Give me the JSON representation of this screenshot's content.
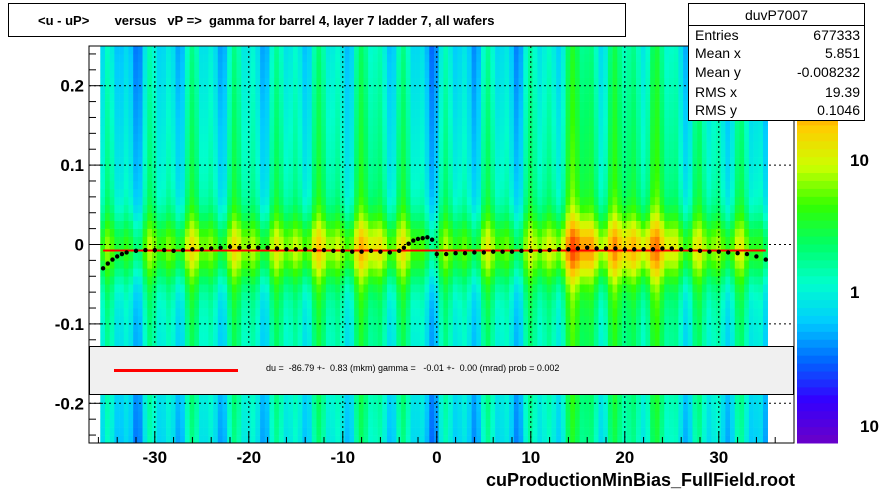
{
  "title": "<u - uP>       versus   vP =>  gamma for barrel 4, layer 7 ladder 7, all wafers",
  "stats": {
    "name": "duvP7007",
    "rows": [
      {
        "label": "Entries",
        "value": "677333"
      },
      {
        "label": "Mean x",
        "value": "5.851"
      },
      {
        "label": "Mean y",
        "value": "-0.008232"
      },
      {
        "label": "RMS x",
        "value": "19.39"
      },
      {
        "label": "RMS y",
        "value": "0.1046"
      }
    ]
  },
  "fit_text": "du =  -86.79 +-  0.83 (mkm) gamma =   -0.01 +-  0.00 (mrad) prob = 0.002",
  "footer": "cuProductionMinBias_FullField.root",
  "colors": {
    "fit_line": "#ff0000",
    "profile_points": "#000000",
    "palette": [
      "#ff0000",
      "#ff6600",
      "#ffcc00",
      "#ccff00",
      "#33ff00",
      "#00ff66",
      "#00ffcc",
      "#00ccff",
      "#0066ff",
      "#3300ff",
      "#6600cc"
    ]
  },
  "chart_data": {
    "type": "heatmap",
    "title": "<u - uP>       versus   vP =>  gamma for barrel 4, layer 7 ladder 7, all wafers",
    "xlabel": "",
    "ylabel": "",
    "xlim": [
      -37,
      38
    ],
    "ylim": [
      -0.25,
      0.25
    ],
    "xticks": [
      -30,
      -20,
      -10,
      0,
      10,
      20,
      30
    ],
    "xtick_labels": [
      "-30",
      "-20",
      "-10",
      "0",
      "10",
      "20",
      "30"
    ],
    "yticks": [
      -0.2,
      -0.1,
      0,
      0.1,
      0.2
    ],
    "ytick_labels": [
      "-0.2",
      "-0.1",
      "0",
      "0.1",
      "0.2"
    ],
    "grid": true,
    "log_z": true,
    "z_tick_labels": [
      "10",
      "1",
      "10"
    ],
    "band_intensity": {
      "x": [
        -34,
        -30,
        -27,
        -24,
        -21,
        -17,
        -14,
        -11,
        -7,
        -4,
        -1,
        2,
        5,
        9,
        12,
        15,
        18,
        22,
        25,
        28,
        31,
        34
      ],
      "level": [
        0.45,
        0.5,
        0.6,
        0.55,
        0.6,
        0.55,
        0.65,
        0.6,
        0.7,
        0.6,
        0.45,
        0.5,
        0.55,
        0.5,
        0.65,
        0.85,
        0.7,
        0.8,
        0.65,
        0.55,
        0.6,
        0.45
      ]
    },
    "profile": {
      "x": [
        -35.5,
        -35,
        -34.5,
        -34,
        -33.5,
        -33,
        -32,
        -31,
        -30,
        -29,
        -28,
        -27,
        -26,
        -25,
        -24,
        -23,
        -22,
        -21,
        -20,
        -19,
        -18,
        -17,
        -16,
        -15,
        -14,
        -13,
        -12,
        -11,
        -10,
        -9,
        -8,
        -7,
        -6,
        -5,
        -4,
        -3.5,
        -3,
        -2.5,
        -2,
        -1.5,
        -1,
        -0.5,
        0,
        1,
        2,
        3,
        4,
        5,
        6,
        7,
        8,
        9,
        10,
        11,
        12,
        13,
        14,
        15,
        16,
        17,
        18,
        19,
        20,
        21,
        22,
        23,
        24,
        25,
        26,
        27,
        28,
        29,
        30,
        31,
        32,
        33,
        34,
        35
      ],
      "y": [
        -0.03,
        -0.024,
        -0.019,
        -0.015,
        -0.012,
        -0.01,
        -0.008,
        -0.007,
        -0.007,
        -0.007,
        -0.008,
        -0.007,
        -0.006,
        -0.006,
        -0.005,
        -0.004,
        -0.003,
        -0.004,
        -0.003,
        -0.004,
        -0.004,
        -0.005,
        -0.006,
        -0.006,
        -0.006,
        -0.007,
        -0.007,
        -0.008,
        -0.008,
        -0.009,
        -0.009,
        -0.008,
        -0.009,
        -0.01,
        -0.008,
        -0.004,
        0.001,
        0.005,
        0.007,
        0.008,
        0.009,
        0.006,
        -0.012,
        -0.012,
        -0.011,
        -0.011,
        -0.01,
        -0.01,
        -0.009,
        -0.009,
        -0.009,
        -0.008,
        -0.008,
        -0.008,
        -0.007,
        -0.006,
        -0.006,
        -0.005,
        -0.004,
        -0.005,
        -0.005,
        -0.005,
        -0.006,
        -0.006,
        -0.006,
        -0.006,
        -0.005,
        -0.005,
        -0.006,
        -0.007,
        -0.008,
        -0.009,
        -0.009,
        -0.01,
        -0.011,
        -0.012,
        -0.015,
        -0.019
      ]
    },
    "fit": {
      "x": [
        -35.5,
        35
      ],
      "y": [
        -0.0075,
        -0.0075
      ]
    }
  }
}
